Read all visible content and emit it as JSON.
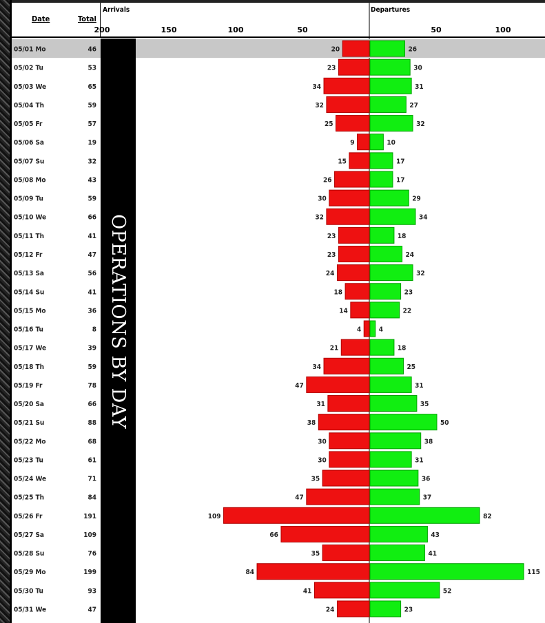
{
  "banner": "OPERATIONS BY DAY",
  "headers": {
    "date": "Date",
    "total": "Total",
    "arrivals": "Arrivals",
    "departures": "Departures"
  },
  "colors": {
    "arrivals": "#ee1111",
    "departures": "#11ee11",
    "selected_row": "#c8c8c8"
  },
  "chart_data": {
    "type": "bar",
    "orientation": "horizontal-diverging",
    "categories": [
      "05/01 Mo",
      "05/02 Tu",
      "05/03 We",
      "05/04 Th",
      "05/05 Fr",
      "05/06 Sa",
      "05/07 Su",
      "05/08 Mo",
      "05/09 Tu",
      "05/10 We",
      "05/11 Th",
      "05/12 Fr",
      "05/13 Sa",
      "05/14 Su",
      "05/15 Mo",
      "05/16 Tu",
      "05/17 We",
      "05/18 Th",
      "05/19 Fr",
      "05/20 Sa",
      "05/21 Su",
      "05/22 Mo",
      "05/23 Tu",
      "05/24 We",
      "05/25 Th",
      "05/26 Fr",
      "05/27 Sa",
      "05/28 Su",
      "05/29 Mo",
      "05/30 Tu",
      "05/31 We"
    ],
    "totals": [
      46,
      53,
      65,
      59,
      57,
      19,
      32,
      43,
      59,
      66,
      41,
      47,
      56,
      41,
      36,
      8,
      39,
      59,
      78,
      66,
      88,
      68,
      61,
      71,
      84,
      191,
      109,
      76,
      199,
      93,
      47
    ],
    "series": [
      {
        "name": "Arrivals",
        "values": [
          20,
          23,
          34,
          32,
          25,
          9,
          15,
          26,
          30,
          32,
          23,
          23,
          24,
          18,
          14,
          4,
          21,
          34,
          47,
          31,
          38,
          30,
          30,
          35,
          47,
          109,
          66,
          35,
          84,
          41,
          24
        ]
      },
      {
        "name": "Departures",
        "values": [
          26,
          30,
          31,
          27,
          32,
          10,
          17,
          17,
          29,
          34,
          18,
          24,
          32,
          23,
          22,
          4,
          18,
          25,
          31,
          35,
          50,
          38,
          31,
          36,
          37,
          82,
          43,
          41,
          115,
          52,
          23
        ]
      }
    ],
    "arrivals_ticks": [
      200,
      150,
      100,
      50
    ],
    "departures_ticks": [
      50,
      100
    ],
    "selected_row": 0
  }
}
